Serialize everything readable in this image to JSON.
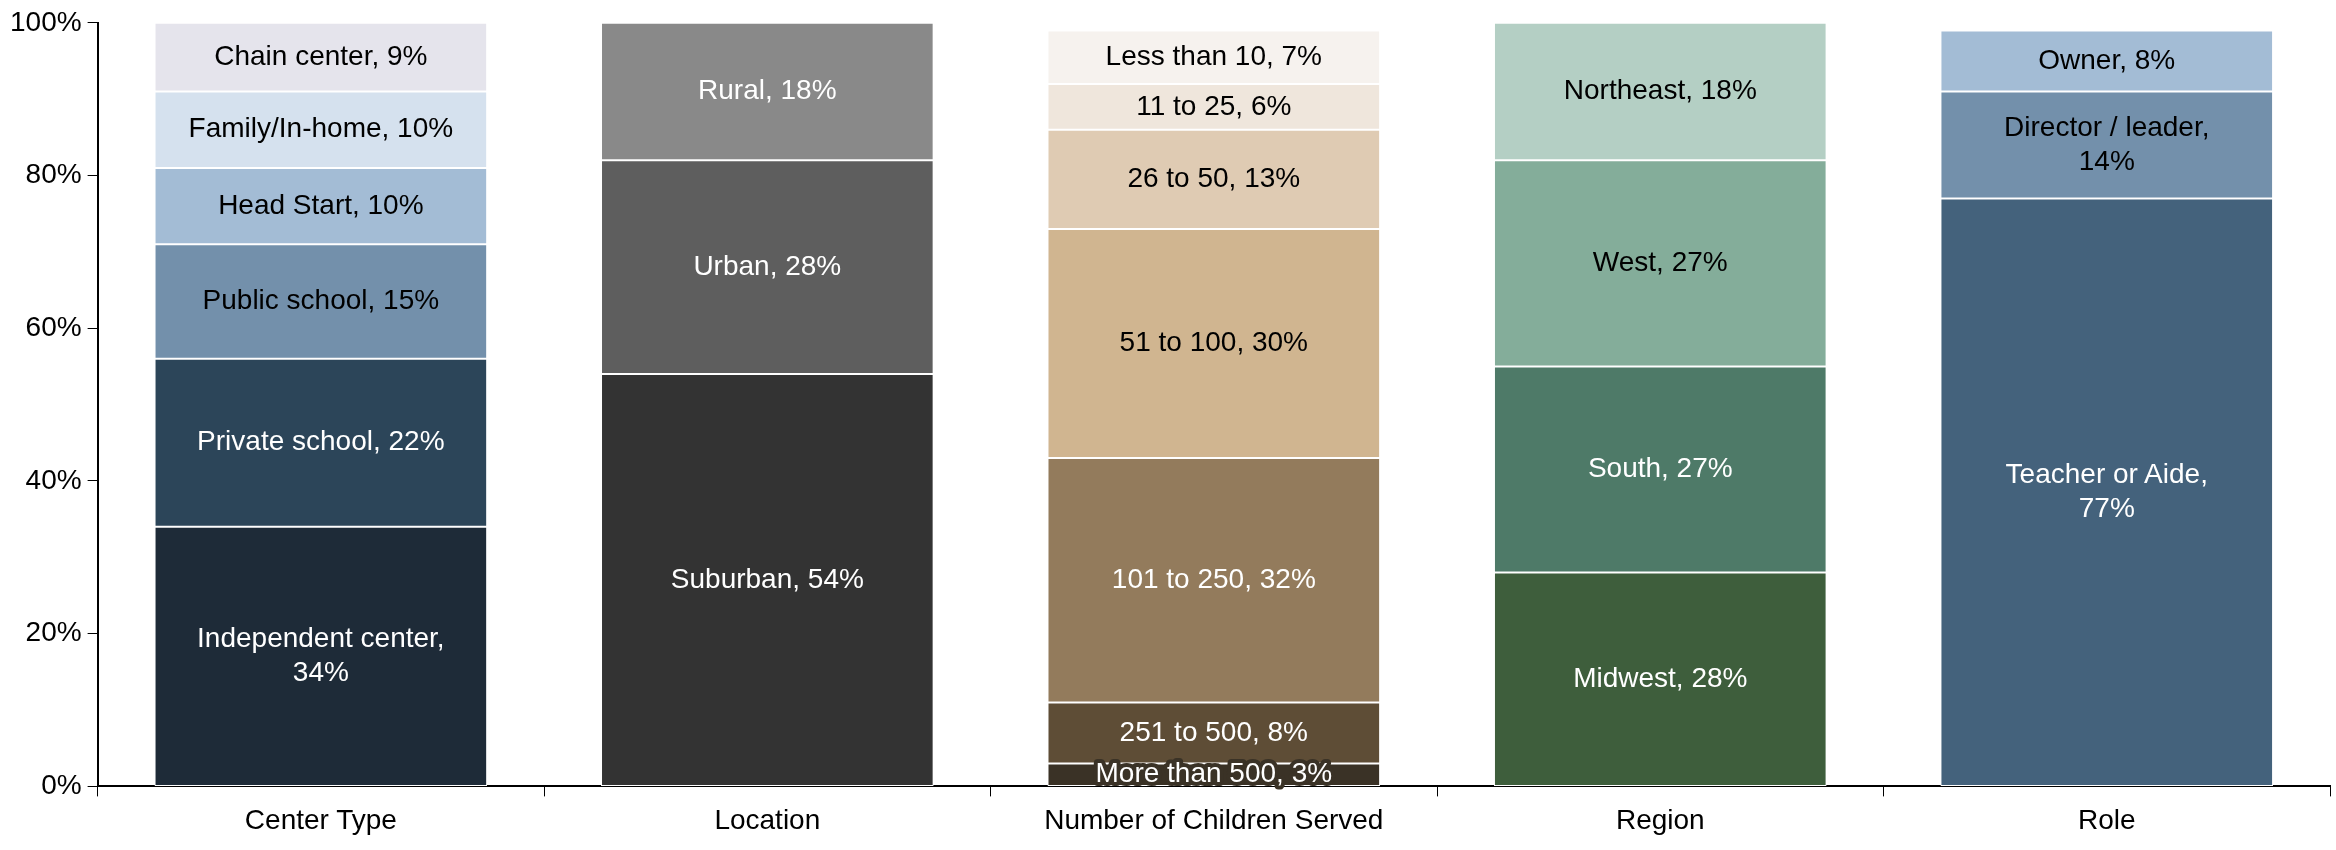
{
  "chart_data": {
    "type": "bar",
    "stacked": true,
    "legend": false,
    "grid": false,
    "categories": [
      "Center Type",
      "Location",
      "Number of Children Served",
      "Region",
      "Role"
    ],
    "ylim": [
      0,
      100
    ],
    "yticks": [
      {
        "value": 0,
        "label": "0%"
      },
      {
        "value": 20,
        "label": "20%"
      },
      {
        "value": 40,
        "label": "40%"
      },
      {
        "value": 60,
        "label": "60%"
      },
      {
        "value": 80,
        "label": "80%"
      },
      {
        "value": 100,
        "label": "100%"
      }
    ],
    "series": [
      {
        "color": "#1e2b38",
        "values": [
          34,
          null,
          null,
          null,
          null
        ],
        "value_labels": [
          "Independent center,\n34%",
          null,
          null,
          null,
          null
        ]
      },
      {
        "color": "#2c4559",
        "values": [
          22,
          null,
          null,
          null,
          null
        ],
        "value_labels": [
          "Private school, 22%",
          null,
          null,
          null,
          null
        ]
      },
      {
        "color": "#7390ab",
        "values": [
          15,
          null,
          null,
          null,
          null
        ],
        "value_labels": [
          "Public school, 15%",
          null,
          null,
          null,
          null
        ]
      },
      {
        "color": "#a3bcd5",
        "values": [
          10,
          null,
          null,
          null,
          null
        ],
        "value_labels": [
          "Head Start, 10%",
          null,
          null,
          null,
          null
        ]
      },
      {
        "color": "#d5e1ee",
        "values": [
          10,
          null,
          null,
          null,
          null
        ],
        "value_labels": [
          "Family/In-home, 10%",
          null,
          null,
          null,
          null
        ]
      },
      {
        "color": "#e5e4ec",
        "values": [
          9,
          null,
          null,
          null,
          null
        ],
        "value_labels": [
          "Chain center, 9%",
          null,
          null,
          null,
          null
        ]
      },
      {
        "color": "#333333",
        "values": [
          null,
          54,
          null,
          null,
          null
        ],
        "value_labels": [
          null,
          "Suburban, 54%",
          null,
          null,
          null
        ]
      },
      {
        "color": "#5e5e5e",
        "values": [
          null,
          28,
          null,
          null,
          null
        ],
        "value_labels": [
          null,
          "Urban, 28%",
          null,
          null,
          null
        ]
      },
      {
        "color": "#898989",
        "values": [
          null,
          18,
          null,
          null,
          null
        ],
        "value_labels": [
          null,
          "Rural, 18%",
          null,
          null,
          null
        ]
      },
      {
        "color": "#3a3226",
        "values": [
          null,
          null,
          3,
          null,
          null
        ],
        "value_labels": [
          null,
          null,
          "More than 500, 3%",
          null,
          null
        ]
      },
      {
        "color": "#5e4d36",
        "values": [
          null,
          null,
          8,
          null,
          null
        ],
        "value_labels": [
          null,
          null,
          "251 to 500, 8%",
          null,
          null
        ]
      },
      {
        "color": "#937b5c",
        "values": [
          null,
          null,
          32,
          null,
          null
        ],
        "value_labels": [
          null,
          null,
          "101 to 250, 32%",
          null,
          null
        ]
      },
      {
        "color": "#d0b590",
        "values": [
          null,
          null,
          30,
          null,
          null
        ],
        "value_labels": [
          null,
          null,
          "51 to 100, 30%",
          null,
          null
        ]
      },
      {
        "color": "#dfcbb3",
        "values": [
          null,
          null,
          13,
          null,
          null
        ],
        "value_labels": [
          null,
          null,
          "26 to 50, 13%",
          null,
          null
        ]
      },
      {
        "color": "#efe6dc",
        "values": [
          null,
          null,
          6,
          null,
          null
        ],
        "value_labels": [
          null,
          null,
          "11 to 25, 6%",
          null,
          null
        ]
      },
      {
        "color": "#f6f2ee",
        "values": [
          null,
          null,
          7,
          null,
          null
        ],
        "value_labels": [
          null,
          null,
          "Less than 10, 7%",
          null,
          null
        ]
      },
      {
        "color": "#3e5e3c",
        "values": [
          null,
          null,
          null,
          28,
          null
        ],
        "value_labels": [
          null,
          null,
          null,
          "Midwest, 28%",
          null
        ]
      },
      {
        "color": "#4e7a68",
        "values": [
          null,
          null,
          null,
          27,
          null
        ],
        "value_labels": [
          null,
          null,
          null,
          "South, 27%",
          null
        ]
      },
      {
        "color": "#84ad9a",
        "values": [
          null,
          null,
          null,
          27,
          null
        ],
        "value_labels": [
          null,
          null,
          null,
          "West, 27%",
          null
        ]
      },
      {
        "color": "#b4cfc4",
        "values": [
          null,
          null,
          null,
          18,
          null
        ],
        "value_labels": [
          null,
          null,
          null,
          "Northeast, 18%",
          null
        ]
      },
      {
        "color": "#44627c",
        "values": [
          null,
          null,
          null,
          null,
          77
        ],
        "value_labels": [
          null,
          null,
          null,
          null,
          "Teacher or Aide,\n77%"
        ]
      },
      {
        "color": "#7390ab",
        "values": [
          null,
          null,
          null,
          null,
          14
        ],
        "value_labels": [
          null,
          null,
          null,
          null,
          "Director / leader,\n14%"
        ]
      },
      {
        "color": "#a3bcd5",
        "values": [
          null,
          null,
          null,
          null,
          8
        ],
        "value_labels": [
          null,
          null,
          null,
          null,
          "Owner, 8%"
        ]
      }
    ]
  }
}
